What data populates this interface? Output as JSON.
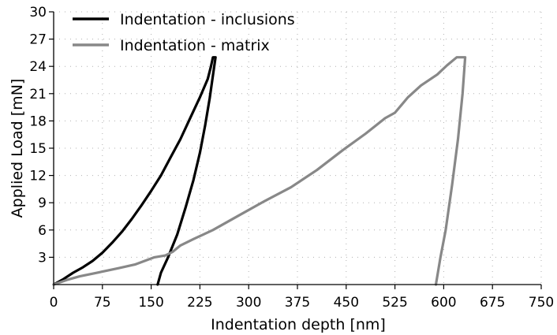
{
  "chart_data": {
    "type": "line",
    "title": "",
    "xlabel": "Indentation depth [nm]",
    "ylabel": "Applied Load [mN]",
    "xlim": [
      0,
      750
    ],
    "ylim": [
      0,
      30
    ],
    "xticks": [
      0,
      75,
      150,
      225,
      300,
      375,
      450,
      525,
      600,
      675,
      750
    ],
    "yticks": [
      3,
      6,
      9,
      12,
      15,
      18,
      21,
      24,
      27,
      30
    ],
    "x_tick_labels": [
      "0",
      "75",
      "150",
      "225",
      "300",
      "375",
      "450",
      "525",
      "600",
      "675",
      "750"
    ],
    "y_tick_labels": [
      "3",
      "6",
      "9",
      "12",
      "15",
      "18",
      "21",
      "24",
      "27",
      "30"
    ],
    "grid": "dotted",
    "legend_position": "top-left",
    "series": [
      {
        "name": "Indentation - inclusions",
        "color": "#000000",
        "points": [
          [
            0,
            0
          ],
          [
            15,
            0.6
          ],
          [
            30,
            1.3
          ],
          [
            45,
            1.9
          ],
          [
            60,
            2.6
          ],
          [
            75,
            3.5
          ],
          [
            90,
            4.6
          ],
          [
            105,
            5.8
          ],
          [
            120,
            7.2
          ],
          [
            135,
            8.7
          ],
          [
            150,
            10.3
          ],
          [
            165,
            12.0
          ],
          [
            180,
            14.0
          ],
          [
            195,
            16.0
          ],
          [
            210,
            18.3
          ],
          [
            225,
            20.6
          ],
          [
            237,
            22.6
          ],
          [
            242,
            24.0
          ],
          [
            245,
            25.0
          ],
          [
            249,
            25.0
          ],
          [
            245,
            23.0
          ],
          [
            240,
            20.5
          ],
          [
            233,
            17.5
          ],
          [
            225,
            14.5
          ],
          [
            215,
            11.5
          ],
          [
            203,
            8.5
          ],
          [
            190,
            5.5
          ],
          [
            176,
            3.0
          ],
          [
            165,
            1.3
          ],
          [
            160,
            0
          ]
        ]
      },
      {
        "name": "Indentation - matrix",
        "color": "#888888",
        "points": [
          [
            0,
            0
          ],
          [
            20,
            0.5
          ],
          [
            40,
            0.9
          ],
          [
            60,
            1.2
          ],
          [
            80,
            1.5
          ],
          [
            100,
            1.8
          ],
          [
            125,
            2.2
          ],
          [
            140,
            2.6
          ],
          [
            155,
            3.0
          ],
          [
            172,
            3.2
          ],
          [
            183,
            3.6
          ],
          [
            195,
            4.3
          ],
          [
            215,
            5.0
          ],
          [
            245,
            6.0
          ],
          [
            285,
            7.6
          ],
          [
            325,
            9.2
          ],
          [
            365,
            10.7
          ],
          [
            405,
            12.6
          ],
          [
            445,
            14.8
          ],
          [
            480,
            16.6
          ],
          [
            510,
            18.3
          ],
          [
            525,
            18.9
          ],
          [
            545,
            20.6
          ],
          [
            565,
            21.9
          ],
          [
            590,
            23.1
          ],
          [
            605,
            24.1
          ],
          [
            620,
            25.0
          ],
          [
            633,
            25.0
          ],
          [
            629,
            21.0
          ],
          [
            622,
            16.0
          ],
          [
            613,
            11.0
          ],
          [
            603,
            6.0
          ],
          [
            595,
            3.0
          ],
          [
            588,
            0
          ]
        ]
      }
    ]
  }
}
